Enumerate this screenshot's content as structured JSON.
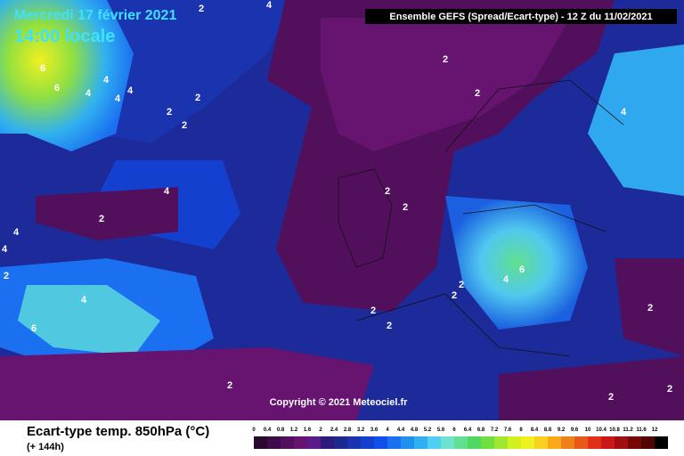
{
  "header": {
    "date": "Mercredi 17 février 2021",
    "time": "14:00 locale",
    "model": "Ensemble GEFS  (Spread/Ecart-type) - 12 Z du 11/02/2021"
  },
  "copyright": "Copyright © 2021 Meteociel.fr",
  "footer": {
    "title": "Ecart-type temp. 850hPa (°C)",
    "lead": "(+ 144h)"
  },
  "scale": {
    "labels": [
      0,
      0.4,
      0.8,
      1.2,
      1.6,
      2,
      2.4,
      2.8,
      3.2,
      3.6,
      4,
      4.4,
      4.8,
      5.2,
      5.6,
      6,
      6.4,
      6.8,
      7.2,
      7.6,
      8,
      8.4,
      8.8,
      9.2,
      9.6,
      10,
      10.4,
      10.8,
      11.2,
      11.6,
      12
    ],
    "colors": [
      "#2a0830",
      "#3e0c48",
      "#52105c",
      "#661470",
      "#5a1a88",
      "#2a1c78",
      "#1e2890",
      "#1a34b0",
      "#1440d0",
      "#1050e8",
      "#1a70f0",
      "#2090f0",
      "#30b0f0",
      "#50d0f0",
      "#70e0d0",
      "#60e090",
      "#50d860",
      "#70e040",
      "#a0e830",
      "#d0f020",
      "#f0f020",
      "#f8d020",
      "#f8a818",
      "#f08018",
      "#e85818",
      "#e03018",
      "#c81818",
      "#a01010",
      "#780808",
      "#500404",
      "#000000"
    ]
  },
  "contour_labels": [
    2,
    4,
    2,
    2,
    4,
    4,
    4,
    4,
    6,
    6,
    2,
    2,
    2,
    4,
    4,
    2,
    2,
    2,
    4,
    4,
    2,
    4,
    6,
    2,
    2,
    4,
    6,
    2,
    2,
    2,
    2,
    2,
    2
  ]
}
